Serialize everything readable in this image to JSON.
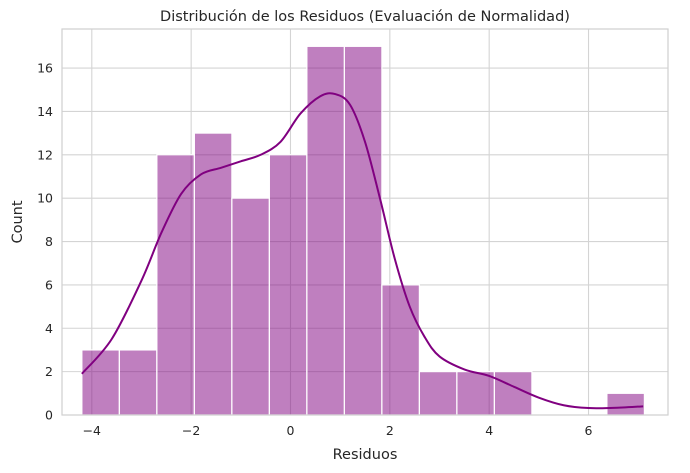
{
  "chart_data": {
    "type": "bar",
    "subtype": "histogram-with-kde",
    "title": "Distribución de los Residuos (Evaluación de Normalidad)",
    "xlabel": "Residuos",
    "ylabel": "Count",
    "xlim": [
      -4.6,
      7.6
    ],
    "ylim": [
      0,
      17.8
    ],
    "xticks": [
      -4,
      -2,
      0,
      2,
      4,
      6
    ],
    "xtick_labels": [
      "−4",
      "−2",
      "0",
      "2",
      "4",
      "6"
    ],
    "yticks": [
      0,
      2,
      4,
      6,
      8,
      10,
      12,
      14,
      16
    ],
    "ytick_labels": [
      "0",
      "2",
      "4",
      "6",
      "8",
      "10",
      "12",
      "14",
      "16"
    ],
    "grid": true,
    "color": "#800080",
    "bin_edges": [
      -4.2,
      -3.445,
      -2.69,
      -1.935,
      -1.18,
      -0.425,
      0.33,
      1.085,
      1.84,
      2.595,
      3.35,
      4.105,
      4.86,
      5.615,
      6.37,
      7.125
    ],
    "counts": [
      3,
      3,
      12,
      13,
      10,
      12,
      17,
      17,
      6,
      2,
      2,
      2,
      0,
      0,
      1
    ],
    "kde": {
      "x": [
        -4.2,
        -3.6,
        -3.0,
        -2.6,
        -2.2,
        -1.8,
        -1.4,
        -1.0,
        -0.6,
        -0.2,
        0.2,
        0.6,
        0.9,
        1.2,
        1.5,
        1.8,
        2.1,
        2.4,
        2.7,
        3.0,
        3.5,
        4.0,
        4.5,
        5.0,
        5.5,
        6.0,
        6.5,
        7.1
      ],
      "y": [
        1.9,
        3.5,
        6.2,
        8.4,
        10.2,
        11.1,
        11.4,
        11.7,
        12.0,
        12.6,
        13.9,
        14.7,
        14.8,
        14.3,
        12.6,
        10.0,
        7.2,
        5.0,
        3.6,
        2.7,
        2.1,
        1.8,
        1.3,
        0.8,
        0.45,
        0.32,
        0.33,
        0.4
      ]
    }
  }
}
